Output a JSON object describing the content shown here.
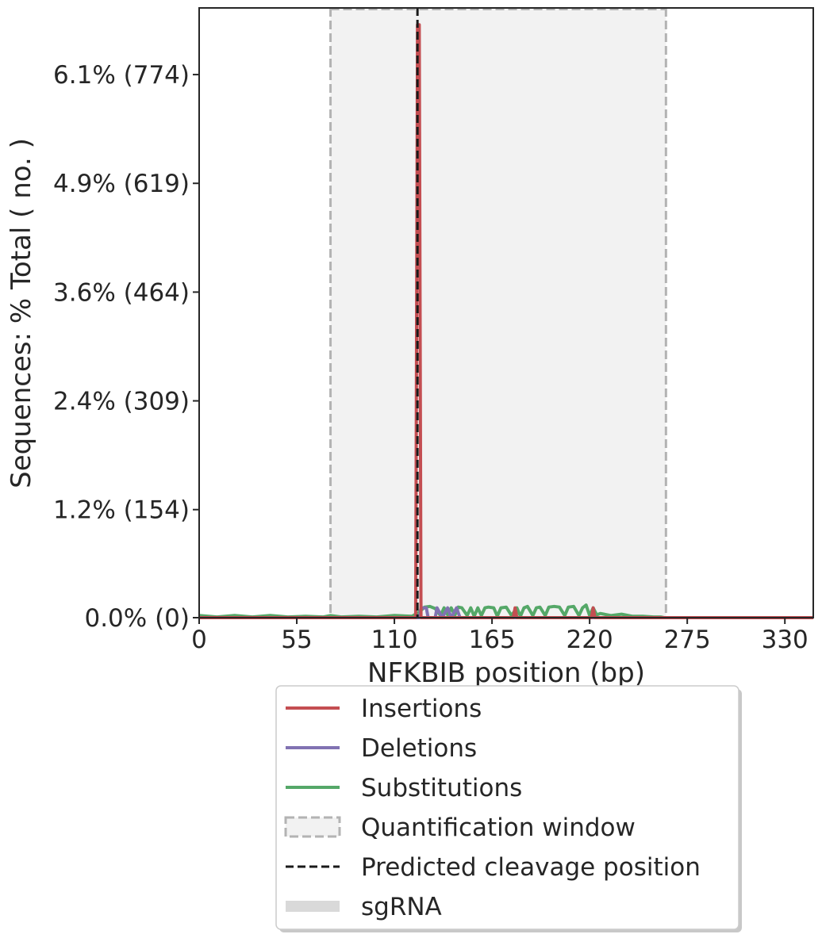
{
  "chart_data": {
    "type": "line",
    "xlabel": "NFKBIB position (bp)",
    "ylabel": "Sequences: % Total ( no. )",
    "xlim": [
      0,
      346
    ],
    "ylim": [
      0,
      869
    ],
    "x_ticks": [
      0,
      55,
      110,
      165,
      220,
      275,
      330
    ],
    "x_tick_labels": [
      "0",
      "55",
      "110",
      "165",
      "220",
      "275",
      "330"
    ],
    "y_ticks": [
      0,
      154,
      309,
      464,
      619,
      774
    ],
    "y_tick_labels": [
      "0.0% (0)",
      "1.2% (154)",
      "2.4% (309)",
      "3.6% (464)",
      "4.9% (619)",
      "6.1% (774)"
    ],
    "quantification_window": [
      74,
      263
    ],
    "predicted_cleavage_position": 123,
    "series": [
      {
        "name": "Insertions",
        "color": "#c44e52",
        "points": [
          [
            0,
            0
          ],
          [
            121,
            0
          ],
          [
            122,
            0
          ],
          [
            123,
            845
          ],
          [
            124,
            845
          ],
          [
            125,
            0
          ],
          [
            126,
            0
          ],
          [
            177,
            0
          ],
          [
            178,
            14
          ],
          [
            179,
            0
          ],
          [
            221,
            0
          ],
          [
            222,
            14
          ],
          [
            223,
            0
          ],
          [
            346,
            0
          ]
        ]
      },
      {
        "name": "Deletions",
        "color": "#8172b2",
        "points": [
          [
            0,
            0
          ],
          [
            124,
            0
          ],
          [
            125,
            14
          ],
          [
            128,
            14
          ],
          [
            129,
            0
          ],
          [
            133,
            0
          ],
          [
            134,
            14
          ],
          [
            137,
            0
          ],
          [
            140,
            14
          ],
          [
            142,
            0
          ],
          [
            145,
            14
          ],
          [
            147,
            0
          ],
          [
            346,
            0
          ]
        ]
      },
      {
        "name": "Substitutions",
        "color": "#55a868",
        "points": [
          [
            0,
            3
          ],
          [
            10,
            1
          ],
          [
            20,
            3
          ],
          [
            30,
            1
          ],
          [
            40,
            3
          ],
          [
            50,
            1
          ],
          [
            60,
            2
          ],
          [
            70,
            1
          ],
          [
            74,
            3
          ],
          [
            80,
            1
          ],
          [
            90,
            2
          ],
          [
            100,
            1
          ],
          [
            110,
            3
          ],
          [
            120,
            2
          ],
          [
            124,
            8
          ],
          [
            127,
            15
          ],
          [
            130,
            16
          ],
          [
            133,
            13
          ],
          [
            136,
            3
          ],
          [
            138,
            14
          ],
          [
            140,
            4
          ],
          [
            142,
            14
          ],
          [
            144,
            3
          ],
          [
            146,
            15
          ],
          [
            148,
            14
          ],
          [
            151,
            3
          ],
          [
            153,
            14
          ],
          [
            155,
            2
          ],
          [
            157,
            14
          ],
          [
            159,
            3
          ],
          [
            161,
            14
          ],
          [
            163,
            15
          ],
          [
            166,
            14
          ],
          [
            168,
            2
          ],
          [
            170,
            14
          ],
          [
            173,
            15
          ],
          [
            176,
            3
          ],
          [
            179,
            14
          ],
          [
            181,
            2
          ],
          [
            183,
            14
          ],
          [
            185,
            16
          ],
          [
            188,
            3
          ],
          [
            190,
            14
          ],
          [
            192,
            15
          ],
          [
            195,
            3
          ],
          [
            197,
            15
          ],
          [
            200,
            16
          ],
          [
            203,
            15
          ],
          [
            206,
            3
          ],
          [
            208,
            15
          ],
          [
            211,
            16
          ],
          [
            214,
            3
          ],
          [
            216,
            14
          ],
          [
            218,
            18
          ],
          [
            220,
            3
          ],
          [
            222,
            14
          ],
          [
            224,
            4
          ],
          [
            226,
            6
          ],
          [
            232,
            3
          ],
          [
            238,
            5
          ],
          [
            244,
            2
          ],
          [
            250,
            2
          ],
          [
            256,
            1
          ],
          [
            260,
            1
          ],
          [
            262,
            0
          ]
        ]
      }
    ],
    "legend": {
      "placement": "below",
      "entries": [
        "Insertions",
        "Deletions",
        "Substitutions",
        "Quantification window",
        "Predicted cleavage position",
        "sgRNA"
      ]
    },
    "colors": {
      "window_fill": "#f2f2f2",
      "window_edge": "#b3b3b3",
      "cleavage": "#1a1a1a",
      "sgrna": "#d9d9d9"
    }
  }
}
